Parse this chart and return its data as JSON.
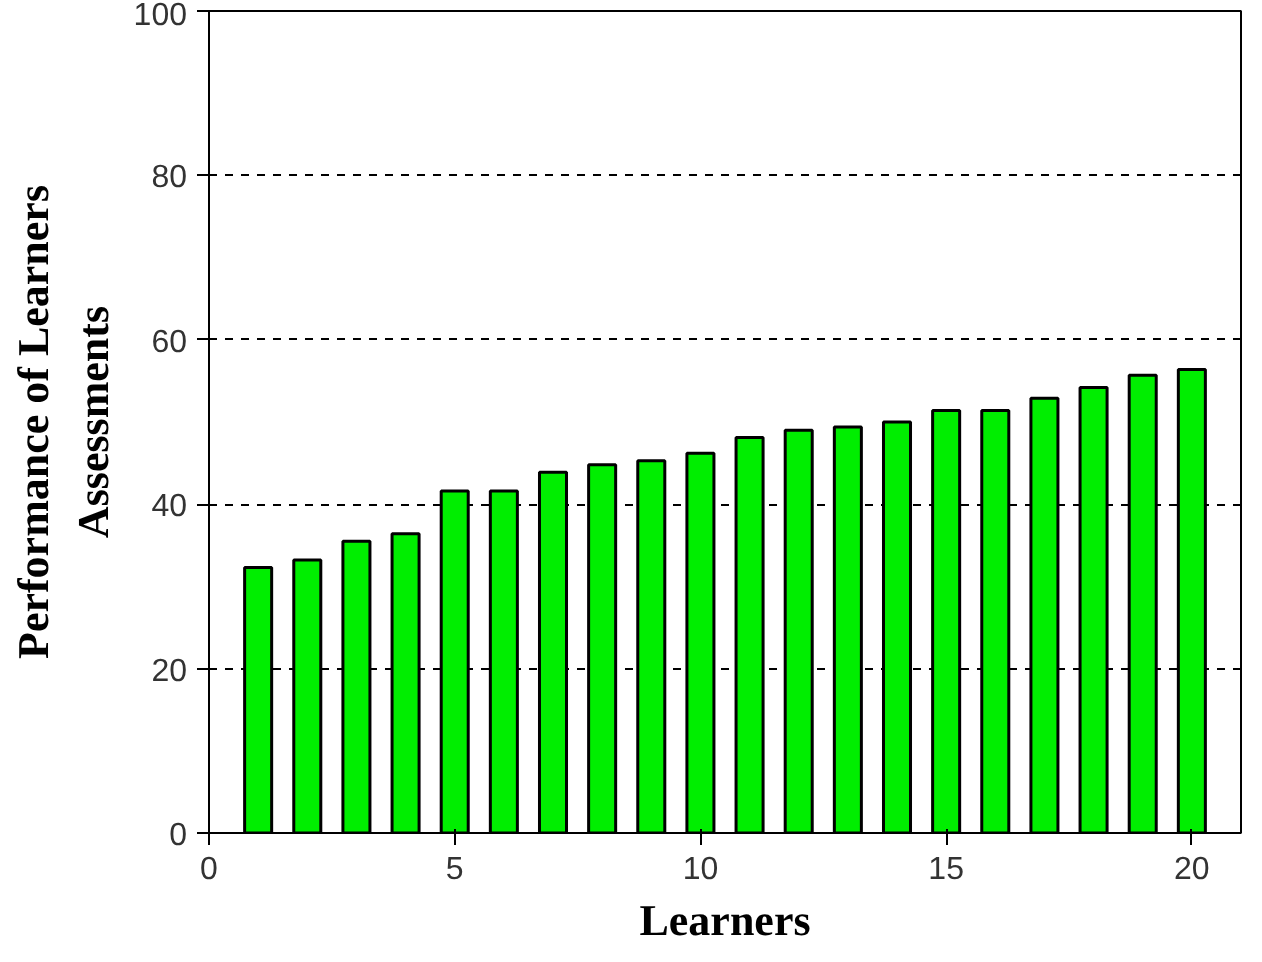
{
  "chart_data": {
    "type": "bar",
    "xlabel": "Learners",
    "ylabel": "Performance of Learners\nAssessments",
    "x": [
      1,
      2,
      3,
      4,
      5,
      6,
      7,
      8,
      9,
      10,
      11,
      12,
      13,
      14,
      15,
      16,
      17,
      18,
      19,
      20
    ],
    "values": [
      32.3,
      33.2,
      35.5,
      36.4,
      41.6,
      41.6,
      43.9,
      44.8,
      45.3,
      46.2,
      48.1,
      49.0,
      49.4,
      50.0,
      51.4,
      51.4,
      52.9,
      54.2,
      55.7,
      56.4
    ],
    "color": "#00ee00",
    "xlim": [
      0,
      21
    ],
    "xticks": [
      0,
      5,
      10,
      15,
      20
    ],
    "ylim": [
      0,
      100
    ],
    "yticks": [
      0,
      20,
      40,
      60,
      80,
      100
    ],
    "grid": "y",
    "line_style": "dashed"
  }
}
